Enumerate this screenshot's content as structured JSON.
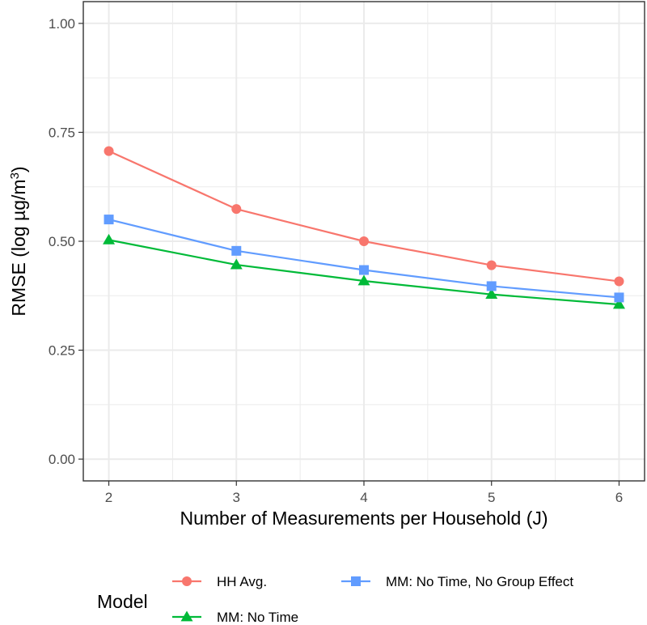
{
  "chart_data": {
    "type": "line",
    "xlabel": "Number of Measurements per Household (J)",
    "ylabel_prefix": "RMSE (log µg/m",
    "ylabel_sup": "3",
    "ylabel_suffix": ")",
    "x": [
      2,
      3,
      4,
      5,
      6
    ],
    "x_ticks": [
      "2",
      "3",
      "4",
      "5",
      "6"
    ],
    "y_ticks": [
      "0.00",
      "0.25",
      "0.50",
      "0.75",
      "1.00"
    ],
    "xlim": [
      1.8,
      6.2
    ],
    "ylim": [
      -0.05,
      1.05
    ],
    "grid": true,
    "legend_position": "bottom",
    "legend_title": "Model",
    "series": [
      {
        "name": "HH Avg.",
        "color": "#F8766D",
        "marker": "circle",
        "values": [
          0.707,
          0.574,
          0.5,
          0.445,
          0.408
        ]
      },
      {
        "name": "MM: No Time",
        "color": "#00BA38",
        "marker": "triangle",
        "values": [
          0.503,
          0.446,
          0.409,
          0.378,
          0.355
        ]
      },
      {
        "name": "MM: No Time, No Group Effect",
        "color": "#619CFF",
        "marker": "square",
        "values": [
          0.55,
          0.478,
          0.434,
          0.397,
          0.371
        ]
      }
    ]
  }
}
